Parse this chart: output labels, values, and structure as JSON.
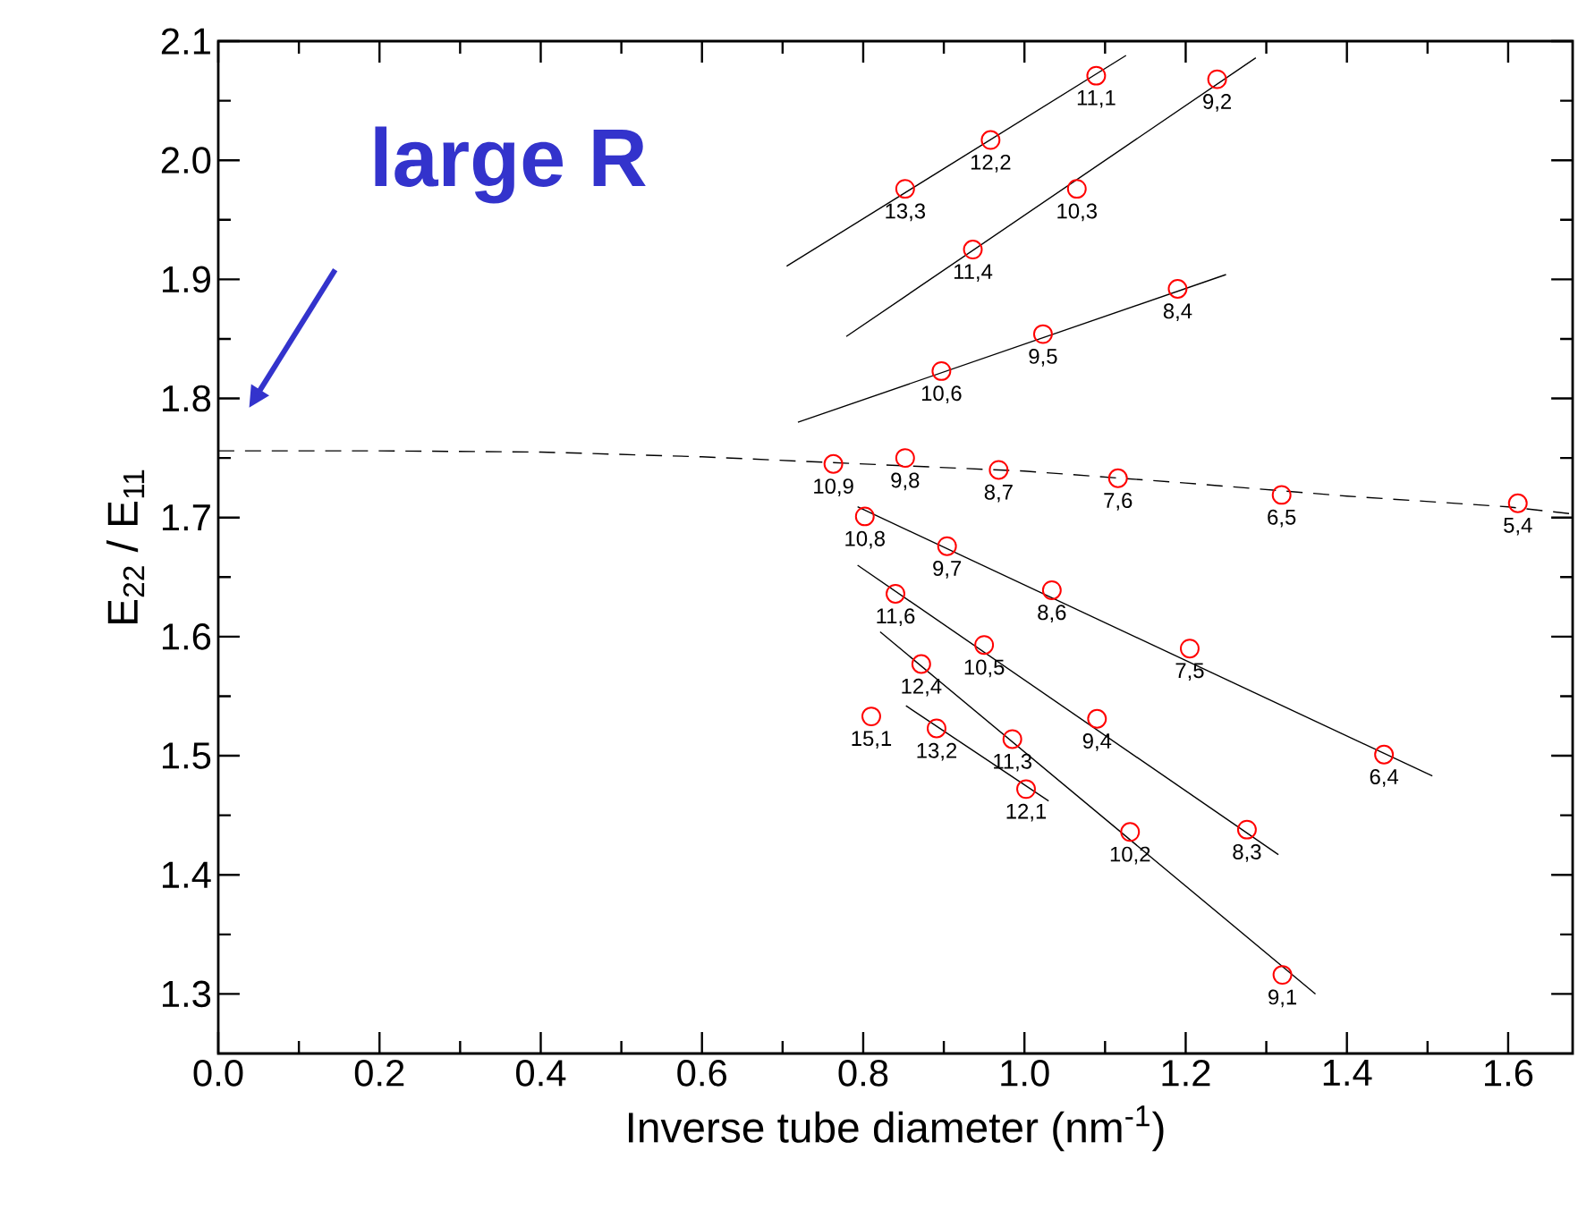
{
  "chart_data": {
    "type": "scatter",
    "xlabel": "Inverse tube diameter (nm$^{-1}$)",
    "ylabel": "E$_{22}$ / E$_{11}$",
    "xlim": [
      0,
      1.68
    ],
    "ylim": [
      1.25,
      2.1
    ],
    "xticks": [
      {
        "value": 0,
        "label": "0.0"
      },
      {
        "value": 0.2,
        "label": "0.2"
      },
      {
        "value": 0.4,
        "label": "0.4"
      },
      {
        "value": 0.6,
        "label": "0.6"
      },
      {
        "value": 0.8,
        "label": "0.8"
      },
      {
        "value": 1.0,
        "label": "1.0"
      },
      {
        "value": 1.2,
        "label": "1.2"
      },
      {
        "value": 1.4,
        "label": "1.4"
      },
      {
        "value": 1.6,
        "label": "1.6"
      }
    ],
    "yticks": [
      {
        "value": 1.3,
        "label": "1.3"
      },
      {
        "value": 1.4,
        "label": "1.4"
      },
      {
        "value": 1.5,
        "label": "1.5"
      },
      {
        "value": 1.6,
        "label": "1.6"
      },
      {
        "value": 1.7,
        "label": "1.7"
      },
      {
        "value": 1.8,
        "label": "1.8"
      },
      {
        "value": 1.9,
        "label": "1.9"
      },
      {
        "value": 2.0,
        "label": "2.0"
      },
      {
        "value": 2.1,
        "label": "2.1"
      }
    ],
    "grid": false,
    "series": [
      {
        "type": "line",
        "color": "#000000",
        "line_style": "dashed",
        "marker": "none",
        "x": [
          0,
          0.2,
          0.4,
          0.6,
          0.8,
          1.0,
          1.2,
          1.4,
          1.6,
          1.68
        ],
        "values": [
          1.756,
          1.756,
          1.755,
          1.751,
          1.745,
          1.739,
          1.729,
          1.718,
          1.709,
          1.703
        ]
      },
      {
        "type": "line",
        "color": "#000000",
        "line_style": "solid",
        "marker": "none",
        "x": [
          0.705,
          1.126
        ],
        "values": [
          1.911,
          2.088
        ]
      },
      {
        "type": "line",
        "color": "#000000",
        "line_style": "solid",
        "marker": "none",
        "x": [
          0.779,
          1.287
        ],
        "values": [
          1.852,
          2.086
        ]
      },
      {
        "type": "line",
        "color": "#000000",
        "line_style": "solid",
        "marker": "none",
        "x": [
          0.719,
          1.25
        ],
        "values": [
          1.78,
          1.904
        ]
      },
      {
        "type": "line",
        "color": "#000000",
        "line_style": "solid",
        "marker": "none",
        "x": [
          0.793,
          1.506
        ],
        "values": [
          1.709,
          1.483
        ]
      },
      {
        "type": "line",
        "color": "#000000",
        "line_style": "solid",
        "marker": "none",
        "x": [
          0.793,
          1.315
        ],
        "values": [
          1.66,
          1.417
        ]
      },
      {
        "type": "line",
        "color": "#000000",
        "line_style": "solid",
        "marker": "none",
        "x": [
          0.821,
          1.361
        ],
        "values": [
          1.604,
          1.3
        ]
      },
      {
        "type": "line",
        "color": "#000000",
        "line_style": "solid",
        "marker": "none",
        "x": [
          0.853,
          1.03
        ],
        "values": [
          1.542,
          1.462
        ]
      },
      {
        "color": "#ff0000",
        "marker": "circle",
        "x": [
          1.089,
          1.239,
          0.958,
          0.852,
          1.065,
          0.936,
          1.19,
          1.023,
          0.897,
          0.763,
          0.852,
          0.968,
          1.116,
          1.319,
          1.612,
          0.802,
          0.904,
          1.034,
          1.205,
          1.446,
          0.84,
          0.95,
          1.09,
          1.276,
          0.872,
          0.985,
          1.131,
          1.32,
          0.81,
          0.891,
          1.002
        ],
        "values": [
          2.071,
          2.068,
          2.017,
          1.976,
          1.976,
          1.925,
          1.892,
          1.854,
          1.823,
          1.745,
          1.75,
          1.74,
          1.733,
          1.719,
          1.712,
          1.701,
          1.676,
          1.639,
          1.59,
          1.501,
          1.636,
          1.593,
          1.531,
          1.438,
          1.577,
          1.514,
          1.436,
          1.316,
          1.533,
          1.523,
          1.472
        ]
      }
    ],
    "annotations": [
      "large R",
      {
        "text": "11,1",
        "x": 1.089,
        "y": 2.071
      },
      {
        "text": "9,2",
        "x": 1.239,
        "y": 2.068
      },
      {
        "text": "12,2",
        "x": 0.958,
        "y": 2.017
      },
      {
        "text": "13,3",
        "x": 0.852,
        "y": 1.976
      },
      {
        "text": "10,3",
        "x": 1.065,
        "y": 1.976
      },
      {
        "text": "11,4",
        "x": 0.936,
        "y": 1.925
      },
      {
        "text": "8,4",
        "x": 1.19,
        "y": 1.892
      },
      {
        "text": "9,5",
        "x": 1.023,
        "y": 1.854
      },
      {
        "text": "10,6",
        "x": 0.897,
        "y": 1.823
      },
      {
        "text": "10,9",
        "x": 0.763,
        "y": 1.745
      },
      {
        "text": "9,8",
        "x": 0.852,
        "y": 1.75
      },
      {
        "text": "8,7",
        "x": 0.968,
        "y": 1.74
      },
      {
        "text": "7,6",
        "x": 1.116,
        "y": 1.733
      },
      {
        "text": "6,5",
        "x": 1.319,
        "y": 1.719
      },
      {
        "text": "5,4",
        "x": 1.612,
        "y": 1.712
      },
      {
        "text": "10,8",
        "x": 0.802,
        "y": 1.701
      },
      {
        "text": "9,7",
        "x": 0.904,
        "y": 1.676
      },
      {
        "text": "8,6",
        "x": 1.034,
        "y": 1.639
      },
      {
        "text": "7,5",
        "x": 1.205,
        "y": 1.59
      },
      {
        "text": "6,4",
        "x": 1.446,
        "y": 1.501
      },
      {
        "text": "11,6",
        "x": 0.84,
        "y": 1.636
      },
      {
        "text": "10,5",
        "x": 0.95,
        "y": 1.593
      },
      {
        "text": "9,4",
        "x": 1.09,
        "y": 1.531
      },
      {
        "text": "8,3",
        "x": 1.276,
        "y": 1.438
      },
      {
        "text": "12,4",
        "x": 0.872,
        "y": 1.577
      },
      {
        "text": "11,3",
        "x": 0.985,
        "y": 1.514
      },
      {
        "text": "10,2",
        "x": 1.131,
        "y": 1.436
      },
      {
        "text": "9,1",
        "x": 1.32,
        "y": 1.316
      },
      {
        "text": "15,1",
        "x": 0.81,
        "y": 1.533
      },
      {
        "text": "13,2",
        "x": 0.891,
        "y": 1.523
      },
      {
        "text": "12,1",
        "x": 1.002,
        "y": 1.472
      }
    ]
  }
}
